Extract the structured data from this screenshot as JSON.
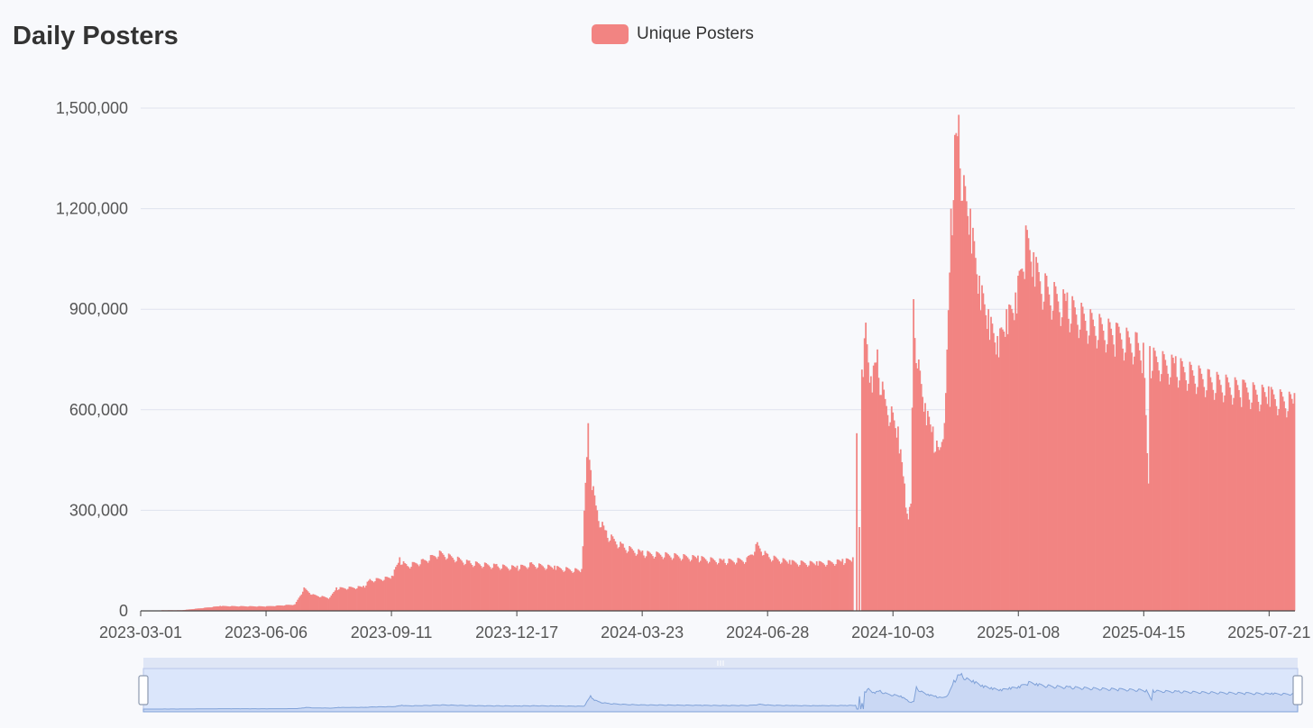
{
  "chart_data": {
    "type": "bar",
    "title": "Daily Posters",
    "legend": {
      "position": "top-center",
      "entries": [
        "Unique Posters"
      ]
    },
    "series": [
      {
        "name": "Unique Posters",
        "color": "#f28482",
        "points": [
          [
            "2023-03-01",
            0
          ],
          [
            "2023-04-01",
            2000
          ],
          [
            "2023-04-20",
            10000
          ],
          [
            "2023-05-01",
            15000
          ],
          [
            "2023-06-06",
            14000
          ],
          [
            "2023-06-28",
            20000
          ],
          [
            "2023-07-05",
            70000
          ],
          [
            "2023-07-12",
            50000
          ],
          [
            "2023-07-25",
            40000
          ],
          [
            "2023-07-30",
            70000
          ],
          [
            "2023-08-20",
            75000
          ],
          [
            "2023-08-25",
            95000
          ],
          [
            "2023-09-11",
            105000
          ],
          [
            "2023-09-17",
            160000
          ],
          [
            "2023-09-22",
            140000
          ],
          [
            "2023-10-05",
            155000
          ],
          [
            "2023-10-18",
            180000
          ],
          [
            "2023-11-10",
            150000
          ],
          [
            "2023-12-01",
            140000
          ],
          [
            "2023-12-17",
            135000
          ],
          [
            "2023-12-28",
            145000
          ],
          [
            "2024-01-15",
            135000
          ],
          [
            "2024-02-05",
            125000
          ],
          [
            "2024-02-10",
            560000
          ],
          [
            "2024-02-12",
            420000
          ],
          [
            "2024-02-17",
            300000
          ],
          [
            "2024-02-24",
            240000
          ],
          [
            "2024-03-08",
            200000
          ],
          [
            "2024-03-23",
            180000
          ],
          [
            "2024-04-10",
            175000
          ],
          [
            "2024-05-05",
            165000
          ],
          [
            "2024-05-25",
            155000
          ],
          [
            "2024-06-12",
            160000
          ],
          [
            "2024-06-20",
            205000
          ],
          [
            "2024-06-28",
            170000
          ],
          [
            "2024-07-15",
            152000
          ],
          [
            "2024-08-05",
            148000
          ],
          [
            "2024-08-25",
            155000
          ],
          [
            "2024-09-02",
            160000
          ],
          [
            "2024-09-04",
            0
          ],
          [
            "2024-09-05",
            530000
          ],
          [
            "2024-09-06",
            0
          ],
          [
            "2024-09-07",
            250000
          ],
          [
            "2024-09-08",
            0
          ],
          [
            "2024-09-09",
            720000
          ],
          [
            "2024-09-12",
            860000
          ],
          [
            "2024-09-16",
            700000
          ],
          [
            "2024-09-21",
            780000
          ],
          [
            "2024-09-26",
            660000
          ],
          [
            "2024-10-02",
            610000
          ],
          [
            "2024-10-07",
            550000
          ],
          [
            "2024-10-12",
            380000
          ],
          [
            "2024-10-14",
            290000
          ],
          [
            "2024-10-17",
            320000
          ],
          [
            "2024-10-19",
            930000
          ],
          [
            "2024-10-23",
            750000
          ],
          [
            "2024-10-28",
            620000
          ],
          [
            "2024-11-03",
            550000
          ],
          [
            "2024-11-08",
            480000
          ],
          [
            "2024-11-13",
            650000
          ],
          [
            "2024-11-17",
            1200000
          ],
          [
            "2024-11-20",
            1420000
          ],
          [
            "2024-11-23",
            1480000
          ],
          [
            "2024-11-27",
            1300000
          ],
          [
            "2024-12-02",
            1200000
          ],
          [
            "2024-12-09",
            1000000
          ],
          [
            "2024-12-16",
            900000
          ],
          [
            "2024-12-23",
            820000
          ],
          [
            "2024-12-30",
            900000
          ],
          [
            "2025-01-06",
            950000
          ],
          [
            "2025-01-14",
            1150000
          ],
          [
            "2025-01-20",
            1070000
          ],
          [
            "2025-01-30",
            1000000
          ],
          [
            "2025-02-15",
            950000
          ],
          [
            "2025-03-05",
            900000
          ],
          [
            "2025-03-25",
            860000
          ],
          [
            "2025-04-10",
            830000
          ],
          [
            "2025-04-15",
            800000
          ],
          [
            "2025-04-19",
            380000
          ],
          [
            "2025-04-20",
            790000
          ],
          [
            "2025-05-10",
            760000
          ],
          [
            "2025-06-05",
            720000
          ],
          [
            "2025-07-01",
            690000
          ],
          [
            "2025-07-21",
            670000
          ],
          [
            "2025-08-10",
            650000
          ]
        ]
      }
    ],
    "x_axis": {
      "type": "time",
      "min": "2023-03-01",
      "max": "2025-08-10",
      "tick_labels": [
        "2023-03-01",
        "2023-06-06",
        "2023-09-11",
        "2023-12-17",
        "2024-03-23",
        "2024-06-28",
        "2024-10-03",
        "2025-01-08",
        "2025-04-15",
        "2025-07-21"
      ]
    },
    "y_axis": {
      "min": 0,
      "max": 1500000,
      "tick_labels": [
        "0",
        "300,000",
        "600,000",
        "900,000",
        "1,200,000",
        "1,500,000"
      ],
      "ticks": [
        0,
        300000,
        600000,
        900000,
        1200000,
        1500000
      ]
    },
    "grid": true,
    "data_zoom": {
      "start": 0,
      "end": 1
    }
  },
  "colors": {
    "bar": "#f28482",
    "grid": "#dfe3ee",
    "axis": "#444444",
    "zoom_fill": "#dbe6fb",
    "zoom_line": "#7fa1d8"
  }
}
